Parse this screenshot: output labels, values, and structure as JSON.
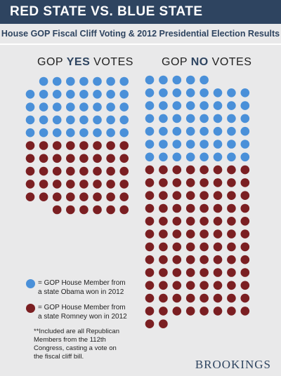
{
  "header": {
    "title": "RED STATE VS. BLUE STATE",
    "subtitle": "House GOP Fiscal Cliff Voting & 2012 Presidential Election Results"
  },
  "columns": {
    "yes_prefix": "GOP ",
    "yes_emphasis": "YES",
    "yes_suffix": " VOTES",
    "no_prefix": "GOP ",
    "no_emphasis": "NO",
    "no_suffix": " VOTES"
  },
  "legend": {
    "blue_text": "= GOP House Member from a state Obama won in 2012",
    "red_text": "= GOP House Member from a state Romney won in 2012",
    "note": "**Included are all Republican Members from the 112th Congress, casting a vote on the fiscal cliff bill."
  },
  "branding": {
    "logo": "BROOKINGS"
  },
  "colors": {
    "blue": "#4a90d9",
    "red": "#7b1f22",
    "title_bg": "#2e4460"
  },
  "chart_data": {
    "type": "dot-matrix",
    "categories": [
      "GOP YES VOTES",
      "GOP NO VOTES"
    ],
    "series": [
      {
        "name": "GOP House Member from a state Obama won in 2012",
        "values": [
          39,
          53
        ]
      },
      {
        "name": "GOP House Member from a state Romney won in 2012",
        "values": [
          46,
          98
        ]
      }
    ]
  }
}
